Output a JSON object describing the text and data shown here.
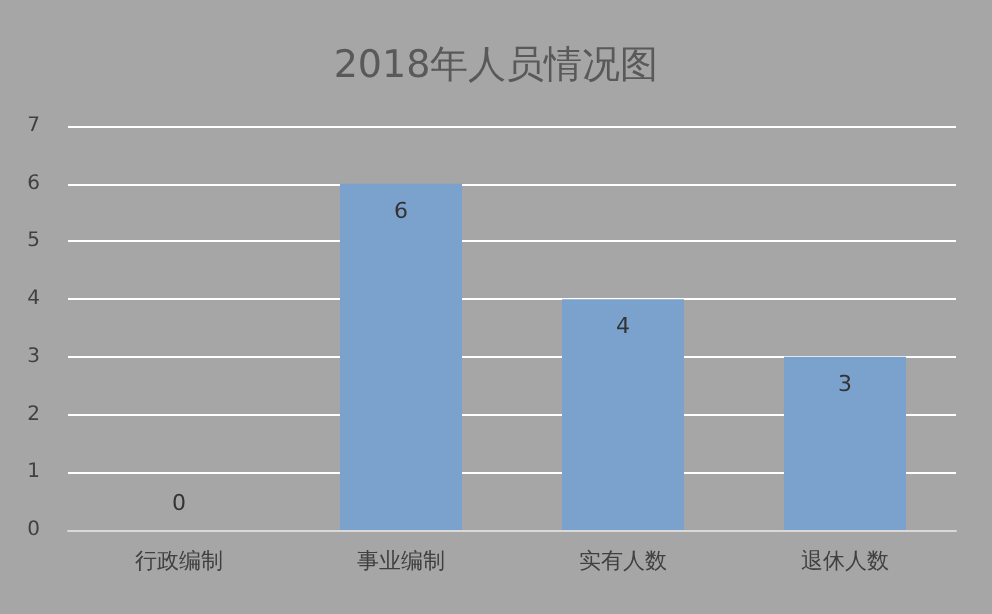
{
  "chart_data": {
    "type": "bar",
    "title": "2018年人员情况图",
    "categories": [
      "行政编制",
      "事业编制",
      "实有人数",
      "退休人数"
    ],
    "values": [
      0,
      6,
      4,
      3
    ],
    "color": "#7ba2cc",
    "ylim": [
      0,
      7
    ],
    "yticks": [
      0,
      1,
      2,
      3,
      4,
      5,
      6,
      7
    ],
    "grid": "y",
    "data_labels": true
  }
}
